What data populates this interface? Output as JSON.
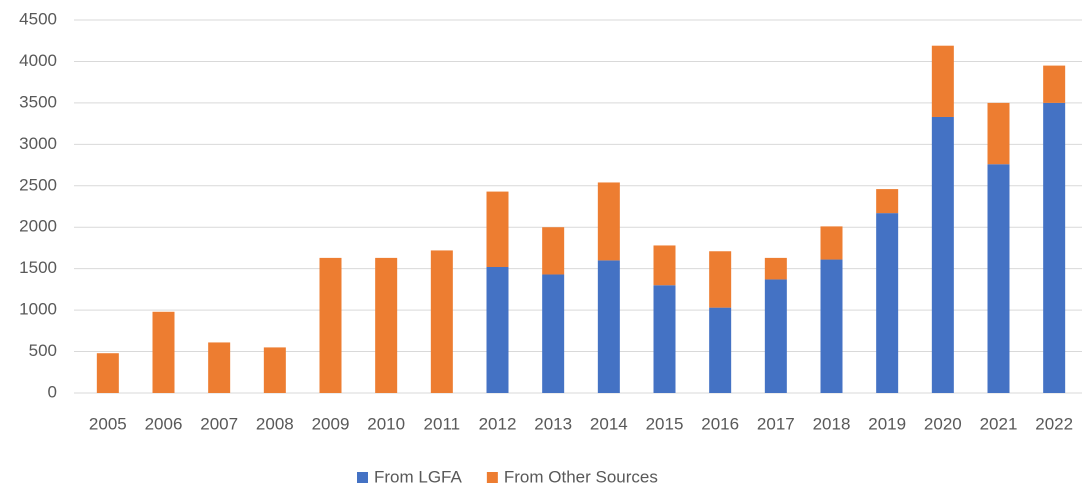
{
  "chart_data": {
    "type": "stacked_bar",
    "categories": [
      "2005",
      "2006",
      "2007",
      "2008",
      "2009",
      "2010",
      "2011",
      "2012",
      "2013",
      "2014",
      "2015",
      "2016",
      "2017",
      "2018",
      "2019",
      "2020",
      "2021",
      "2022"
    ],
    "series": [
      {
        "name": "From LGFA",
        "color": "#4472c4",
        "values": [
          0,
          0,
          0,
          0,
          0,
          0,
          0,
          1520,
          1430,
          1600,
          1300,
          1030,
          1370,
          1610,
          2170,
          3330,
          2760,
          3500
        ]
      },
      {
        "name": "From Other Sources",
        "color": "#ed7d31",
        "values": [
          480,
          980,
          610,
          550,
          1630,
          1630,
          1720,
          910,
          570,
          940,
          480,
          680,
          260,
          400,
          290,
          860,
          740,
          450
        ]
      }
    ],
    "ylim": [
      0,
      4500
    ],
    "yticks": [
      0,
      500,
      1000,
      1500,
      2000,
      2500,
      3000,
      3500,
      4000,
      4500
    ],
    "grid": true,
    "legend": "bottom"
  }
}
